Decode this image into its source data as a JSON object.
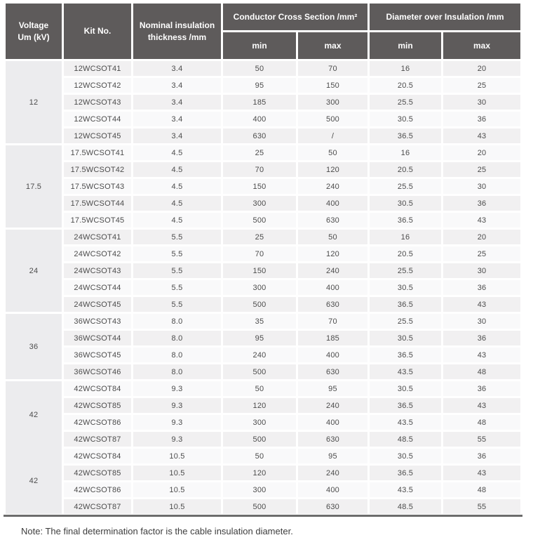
{
  "table": {
    "header": {
      "voltage_line1": "Voltage",
      "voltage_line2": "Um (kV)",
      "kit": "Kit No.",
      "thickness_line1": "Nominal insulation",
      "thickness_line2": "thickness /mm",
      "ccs_group": "Conductor Cross Section /mm²",
      "doi_group": "Diameter over Insulation /mm",
      "min_label": "min",
      "max_label": "max"
    },
    "groups": [
      {
        "voltage": "12",
        "rows": [
          {
            "kit": "12WCSOT41",
            "thickness": "3.4",
            "ccs_min": "50",
            "ccs_max": "70",
            "doi_min": "16",
            "doi_max": "20"
          },
          {
            "kit": "12WCSOT42",
            "thickness": "3.4",
            "ccs_min": "95",
            "ccs_max": "150",
            "doi_min": "20.5",
            "doi_max": "25"
          },
          {
            "kit": "12WCSOT43",
            "thickness": "3.4",
            "ccs_min": "185",
            "ccs_max": "300",
            "doi_min": "25.5",
            "doi_max": "30"
          },
          {
            "kit": "12WCSOT44",
            "thickness": "3.4",
            "ccs_min": "400",
            "ccs_max": "500",
            "doi_min": "30.5",
            "doi_max": "36"
          },
          {
            "kit": "12WCSOT45",
            "thickness": "3.4",
            "ccs_min": "630",
            "ccs_max": "/",
            "doi_min": "36.5",
            "doi_max": "43"
          }
        ]
      },
      {
        "voltage": "17.5",
        "rows": [
          {
            "kit": "17.5WCSOT41",
            "thickness": "4.5",
            "ccs_min": "25",
            "ccs_max": "50",
            "doi_min": "16",
            "doi_max": "20"
          },
          {
            "kit": "17.5WCSOT42",
            "thickness": "4.5",
            "ccs_min": "70",
            "ccs_max": "120",
            "doi_min": "20.5",
            "doi_max": "25"
          },
          {
            "kit": "17.5WCSOT43",
            "thickness": "4.5",
            "ccs_min": "150",
            "ccs_max": "240",
            "doi_min": "25.5",
            "doi_max": "30"
          },
          {
            "kit": "17.5WCSOT44",
            "thickness": "4.5",
            "ccs_min": "300",
            "ccs_max": "400",
            "doi_min": "30.5",
            "doi_max": "36"
          },
          {
            "kit": "17.5WCSOT45",
            "thickness": "4.5",
            "ccs_min": "500",
            "ccs_max": "630",
            "doi_min": "36.5",
            "doi_max": "43"
          }
        ]
      },
      {
        "voltage": "24",
        "rows": [
          {
            "kit": "24WCSOT41",
            "thickness": "5.5",
            "ccs_min": "25",
            "ccs_max": "50",
            "doi_min": "16",
            "doi_max": "20"
          },
          {
            "kit": "24WCSOT42",
            "thickness": "5.5",
            "ccs_min": "70",
            "ccs_max": "120",
            "doi_min": "20.5",
            "doi_max": "25"
          },
          {
            "kit": "24WCSOT43",
            "thickness": "5.5",
            "ccs_min": "150",
            "ccs_max": "240",
            "doi_min": "25.5",
            "doi_max": "30"
          },
          {
            "kit": "24WCSOT44",
            "thickness": "5.5",
            "ccs_min": "300",
            "ccs_max": "400",
            "doi_min": "30.5",
            "doi_max": "36"
          },
          {
            "kit": "24WCSOT45",
            "thickness": "5.5",
            "ccs_min": "500",
            "ccs_max": "630",
            "doi_min": "36.5",
            "doi_max": "43"
          }
        ]
      },
      {
        "voltage": "36",
        "rows": [
          {
            "kit": "36WCSOT43",
            "thickness": "8.0",
            "ccs_min": "35",
            "ccs_max": "70",
            "doi_min": "25.5",
            "doi_max": "30"
          },
          {
            "kit": "36WCSOT44",
            "thickness": "8.0",
            "ccs_min": "95",
            "ccs_max": "185",
            "doi_min": "30.5",
            "doi_max": "36"
          },
          {
            "kit": "36WCSOT45",
            "thickness": "8.0",
            "ccs_min": "240",
            "ccs_max": "400",
            "doi_min": "36.5",
            "doi_max": "43"
          },
          {
            "kit": "36WCSOT46",
            "thickness": "8.0",
            "ccs_min": "500",
            "ccs_max": "630",
            "doi_min": "43.5",
            "doi_max": "48"
          }
        ]
      },
      {
        "voltage": "42",
        "rows": [
          {
            "kit": "42WCSOT84",
            "thickness": "9.3",
            "ccs_min": "50",
            "ccs_max": "95",
            "doi_min": "30.5",
            "doi_max": "36"
          },
          {
            "kit": "42WCSOT85",
            "thickness": "9.3",
            "ccs_min": "120",
            "ccs_max": "240",
            "doi_min": "36.5",
            "doi_max": "43"
          },
          {
            "kit": "42WCSOT86",
            "thickness": "9.3",
            "ccs_min": "300",
            "ccs_max": "400",
            "doi_min": "43.5",
            "doi_max": "48"
          },
          {
            "kit": "42WCSOT87",
            "thickness": "9.3",
            "ccs_min": "500",
            "ccs_max": "630",
            "doi_min": "48.5",
            "doi_max": "55"
          }
        ]
      },
      {
        "voltage": "42",
        "merge_with_previous": true,
        "rows": [
          {
            "kit": "42WCSOT84",
            "thickness": "10.5",
            "ccs_min": "50",
            "ccs_max": "95",
            "doi_min": "30.5",
            "doi_max": "36"
          },
          {
            "kit": "42WCSOT85",
            "thickness": "10.5",
            "ccs_min": "120",
            "ccs_max": "240",
            "doi_min": "36.5",
            "doi_max": "43"
          },
          {
            "kit": "42WCSOT86",
            "thickness": "10.5",
            "ccs_min": "300",
            "ccs_max": "400",
            "doi_min": "43.5",
            "doi_max": "48"
          },
          {
            "kit": "42WCSOT87",
            "thickness": "10.5",
            "ccs_min": "500",
            "ccs_max": "630",
            "doi_min": "48.5",
            "doi_max": "55"
          }
        ]
      }
    ]
  },
  "note": "Note: The final determination factor is the cable insulation diameter.",
  "colors": {
    "header_bg": "#5e5b5b",
    "header_text": "#ffffff",
    "row_odd_bg": "#f1f0f1",
    "row_even_bg": "#f9f9fa",
    "voltage_cell_bg": "#ececee",
    "body_text": "#4c4c4c",
    "bottom_rule": "#6c6c6c",
    "note_text": "#3d3d3d"
  }
}
